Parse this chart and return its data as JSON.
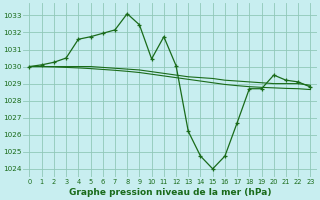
{
  "title": "Graphe pression niveau de la mer (hPa)",
  "bg_color": "#c8eef0",
  "grid_color": "#90c8b8",
  "line_color": "#1a6b1a",
  "xlim": [
    -0.5,
    23.5
  ],
  "ylim": [
    1023.5,
    1033.7
  ],
  "yticks": [
    1024,
    1025,
    1026,
    1027,
    1028,
    1029,
    1030,
    1031,
    1032,
    1033
  ],
  "xticks": [
    0,
    1,
    2,
    3,
    4,
    5,
    6,
    7,
    8,
    9,
    10,
    11,
    12,
    13,
    14,
    15,
    16,
    17,
    18,
    19,
    20,
    21,
    22,
    23
  ],
  "series": [
    {
      "x": [
        0,
        1,
        2,
        3,
        4,
        5,
        6,
        7,
        8,
        9,
        10,
        11,
        12,
        13,
        14,
        15,
        16,
        17,
        18,
        19,
        20,
        21,
        22,
        23
      ],
      "y": [
        1030.0,
        1030.0,
        1030.0,
        1030.0,
        1030.0,
        1030.0,
        1029.95,
        1029.9,
        1029.85,
        1029.8,
        1029.7,
        1029.6,
        1029.5,
        1029.4,
        1029.35,
        1029.3,
        1029.2,
        1029.15,
        1029.1,
        1029.05,
        1029.0,
        1029.0,
        1029.0,
        1028.9
      ],
      "marker": null,
      "linestyle": "-",
      "lw": 0.8
    },
    {
      "x": [
        0,
        1,
        2,
        3,
        4,
        5,
        6,
        7,
        8,
        9,
        10,
        11,
        12,
        13,
        14,
        15,
        16,
        17,
        18,
        19,
        20,
        21,
        22,
        23
      ],
      "y": [
        1030.0,
        1030.0,
        1029.98,
        1029.95,
        1029.92,
        1029.88,
        1029.83,
        1029.78,
        1029.72,
        1029.65,
        1029.55,
        1029.45,
        1029.35,
        1029.25,
        1029.15,
        1029.05,
        1028.95,
        1028.88,
        1028.82,
        1028.78,
        1028.75,
        1028.72,
        1028.7,
        1028.65
      ],
      "marker": null,
      "linestyle": "-",
      "lw": 0.8
    },
    {
      "x": [
        0,
        1,
        2,
        3,
        4,
        5,
        6,
        7,
        8,
        9,
        10,
        11,
        12,
        13,
        14,
        15,
        16,
        17,
        18,
        19,
        20,
        21,
        22,
        23
      ],
      "y": [
        1030.0,
        1030.1,
        1030.25,
        1030.5,
        1031.6,
        1031.75,
        1031.95,
        1032.15,
        1033.1,
        1032.45,
        1030.45,
        1031.75,
        1030.05,
        1026.2,
        1024.75,
        1024.0,
        1024.75,
        1026.7,
        1028.7,
        1028.7,
        1029.5,
        1029.2,
        1029.1,
        1028.8
      ],
      "marker": "+",
      "linestyle": "-",
      "lw": 0.9
    }
  ]
}
